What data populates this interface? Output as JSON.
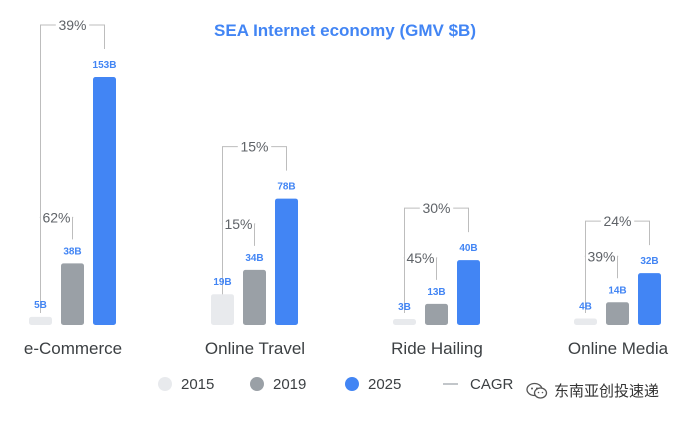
{
  "chart_data": {
    "type": "bar",
    "title": "SEA Internet economy (GMV $B)",
    "categories": [
      "e-Commerce",
      "Online Travel",
      "Ride Hailing",
      "Online Media"
    ],
    "series": [
      {
        "name": "2015",
        "values": [
          5,
          19,
          3,
          4
        ],
        "labels": [
          "5B",
          "19B",
          "3B",
          "4B"
        ],
        "color": "#e8eaed"
      },
      {
        "name": "2019",
        "values": [
          38,
          34,
          13,
          14
        ],
        "labels": [
          "38B",
          "34B",
          "13B",
          "14B"
        ],
        "color": "#9aa0a6"
      },
      {
        "name": "2025",
        "values": [
          153,
          78,
          40,
          32
        ],
        "labels": [
          "153B",
          "78B",
          "40B",
          "32B"
        ],
        "color": "#4285f4"
      }
    ],
    "cagr_outer": [
      "39%",
      "15%",
      "30%",
      "24%"
    ],
    "cagr_inner": [
      "62%",
      "15%",
      "45%",
      "39%"
    ],
    "legend": [
      "2015",
      "2019",
      "2025",
      "CAGR"
    ],
    "ylim": [
      0,
      153
    ]
  },
  "colors": {
    "title": "#4285f4",
    "value_label": "#4285f4",
    "bracket": "#bdbdbd",
    "category_text": "#3c4043",
    "cagr_text": "#5f6368"
  },
  "watermark": {
    "text": "东南亚创投速递",
    "icon": "wechat-icon"
  }
}
